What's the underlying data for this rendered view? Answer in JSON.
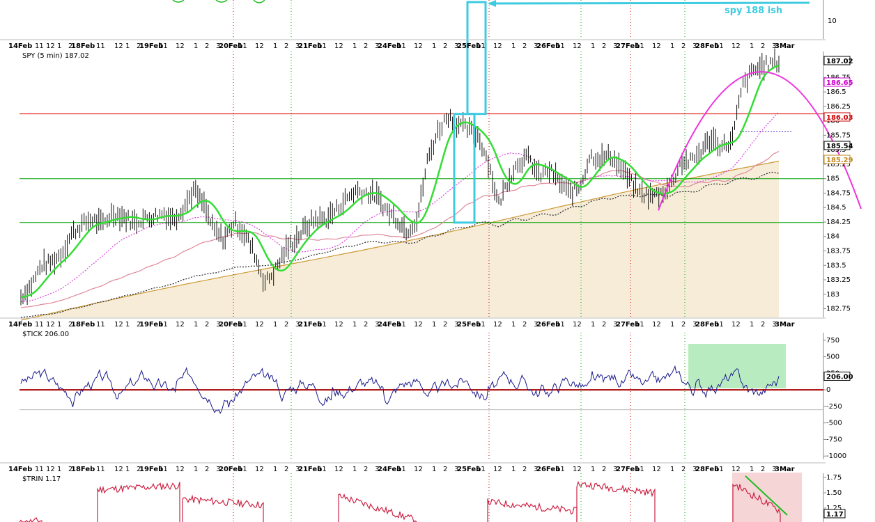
{
  "chart_data": [
    {
      "type": "line",
      "panel": "top",
      "ylabel_ticks": [
        "10"
      ],
      "annotation": "spy 188 ish",
      "colors": {
        "arrow": "#3ecbe0"
      }
    },
    {
      "type": "line",
      "panel": "price",
      "title": "SPY (5 min) 187.02",
      "x_labels": [
        "14Feb",
        "11",
        "12",
        "1",
        "2",
        "18Feb",
        "11",
        "12",
        "1",
        "2",
        "19Feb",
        "11",
        "12",
        "1",
        "2",
        "3",
        "20Feb",
        "11",
        "12",
        "1",
        "2",
        "3",
        "21Feb",
        "11",
        "12",
        "1",
        "2",
        "3",
        "24Feb",
        "11",
        "12",
        "1",
        "2",
        "3",
        "25Feb",
        "11",
        "12",
        "1",
        "2",
        "3",
        "26Feb",
        "11",
        "12",
        "1",
        "2",
        "3",
        "27Feb",
        "11",
        "12",
        "1",
        "2",
        "3",
        "28Feb",
        "11",
        "12",
        "1",
        "2",
        "3",
        "3Mar"
      ],
      "y_ticks": [
        182.75,
        183.0,
        183.25,
        183.5,
        183.75,
        184.0,
        184.25,
        184.5,
        184.75,
        185.0,
        185.25,
        185.5,
        185.75,
        186.0,
        186.25,
        186.5,
        186.75,
        187.0
      ],
      "ylim": [
        182.6,
        187.2
      ],
      "price_labels": [
        {
          "value": "187.02",
          "color": "#000000"
        },
        {
          "value": "186.65",
          "color": "#cc00cc"
        },
        {
          "value": "186.03",
          "color": "#cc0000"
        },
        {
          "value": "185.54",
          "color": "#000000"
        },
        {
          "value": "185.29",
          "color": "#c08a20"
        }
      ],
      "horizontal_levels": [
        {
          "value": 186.12,
          "color": "#e00000"
        },
        {
          "value": 185.0,
          "color": "#00a000"
        },
        {
          "value": 184.24,
          "color": "#00a000"
        }
      ],
      "price_path": [
        [
          0,
          182.95
        ],
        [
          0.5,
          183.15
        ],
        [
          1.0,
          183.5
        ],
        [
          1.5,
          183.55
        ],
        [
          2.0,
          183.7
        ],
        [
          2.5,
          184.05
        ],
        [
          3.0,
          184.2
        ],
        [
          3.5,
          184.3
        ],
        [
          4.0,
          184.2
        ],
        [
          4.5,
          184.4
        ],
        [
          5.0,
          184.35
        ],
        [
          5.5,
          184.25
        ],
        [
          6.0,
          184.3
        ],
        [
          6.5,
          184.35
        ],
        [
          7.0,
          184.4
        ],
        [
          7.5,
          184.3
        ],
        [
          8.0,
          184.5
        ],
        [
          8.5,
          184.8
        ],
        [
          9.0,
          184.55
        ],
        [
          9.5,
          184.1
        ],
        [
          10.0,
          183.95
        ],
        [
          10.5,
          184.25
        ],
        [
          11.0,
          184.05
        ],
        [
          11.5,
          183.7
        ],
        [
          12.0,
          183.2
        ],
        [
          12.5,
          183.4
        ],
        [
          13.0,
          183.75
        ],
        [
          13.5,
          183.95
        ],
        [
          14.0,
          184.15
        ],
        [
          14.5,
          184.3
        ],
        [
          15.0,
          184.3
        ],
        [
          15.5,
          184.45
        ],
        [
          16.0,
          184.65
        ],
        [
          16.5,
          184.8
        ],
        [
          17.0,
          184.75
        ],
        [
          17.5,
          184.7
        ],
        [
          18.0,
          184.45
        ],
        [
          18.5,
          184.3
        ],
        [
          19.0,
          184.1
        ],
        [
          19.5,
          184.3
        ],
        [
          20.0,
          185.3
        ],
        [
          20.5,
          185.8
        ],
        [
          21.0,
          186.1
        ],
        [
          21.5,
          185.95
        ],
        [
          22.0,
          185.85
        ],
        [
          22.5,
          185.75
        ],
        [
          23.0,
          185.3
        ],
        [
          23.5,
          184.55
        ],
        [
          24.0,
          185.0
        ],
        [
          24.5,
          185.3
        ],
        [
          25.0,
          185.35
        ],
        [
          25.5,
          185.05
        ],
        [
          26.0,
          185.15
        ],
        [
          26.5,
          184.95
        ],
        [
          27.0,
          184.75
        ],
        [
          27.5,
          184.85
        ],
        [
          28.0,
          185.4
        ],
        [
          28.5,
          185.35
        ],
        [
          29.0,
          185.4
        ],
        [
          29.5,
          185.2
        ],
        [
          30.0,
          184.95
        ],
        [
          30.5,
          184.75
        ],
        [
          31.0,
          184.7
        ],
        [
          31.5,
          184.75
        ],
        [
          32.0,
          184.9
        ],
        [
          32.5,
          185.3
        ],
        [
          33.0,
          185.3
        ],
        [
          33.5,
          185.5
        ],
        [
          34.0,
          185.7
        ],
        [
          34.5,
          185.55
        ],
        [
          35.0,
          185.65
        ],
        [
          35.5,
          186.6
        ],
        [
          36.0,
          186.85
        ],
        [
          36.5,
          186.95
        ],
        [
          37.0,
          187.0
        ],
        [
          37.3,
          187.02
        ]
      ],
      "series": [
        {
          "name": "",
          "color": "#33dd33"
        },
        {
          "name": "",
          "color": "#dd44dd"
        },
        {
          "name": "",
          "color": "#dd8899"
        },
        {
          "name": "",
          "color": "#333333"
        },
        {
          "name": "",
          "color": "#cc9933"
        }
      ],
      "colors": {
        "fill": "#f6ecd8",
        "box": "#3ecbe0",
        "arc": "#ee33dd"
      }
    },
    {
      "type": "line",
      "panel": "tick",
      "title": "$TICK 206.00",
      "y_ticks": [
        750,
        500,
        250,
        0,
        -250,
        -500,
        -750,
        -1000
      ],
      "ylim": [
        -1050,
        800
      ],
      "last_value": "206.00",
      "colors": {
        "line": "#1a1a8c",
        "zero": "#aa0000",
        "highlight": "#b8ecc0"
      }
    },
    {
      "type": "line",
      "panel": "trin",
      "title": "$TRIN 1.17",
      "y_ticks": [
        "1.75",
        "1.50",
        "1.25"
      ],
      "last_value": "1.17",
      "colors": {
        "line": "#cc2244",
        "highlight": "#f5d5d5",
        "trend": "#22bb22"
      }
    }
  ]
}
